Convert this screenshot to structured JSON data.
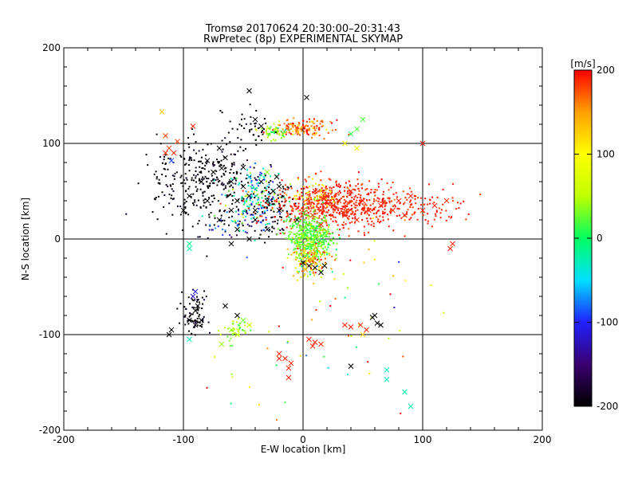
{
  "chart_data": {
    "type": "scatter",
    "title": "Tromsø 20170624 20:30:00–20:31:43",
    "subtitle": "RwPretec (8p) EXPERIMENTAL SKYMAP",
    "xlabel": "E-W location [km]",
    "ylabel": "N-S location [km]",
    "xlim": [
      -200,
      200
    ],
    "ylim": [
      -200,
      200
    ],
    "xticks": [
      -200,
      -100,
      0,
      100,
      200
    ],
    "yticks": [
      -200,
      -100,
      0,
      100,
      200
    ],
    "grid": true,
    "colorbar": {
      "label": "[m/s]",
      "min": -200,
      "max": 200,
      "ticks": [
        200,
        100,
        0,
        -100,
        -200
      ],
      "colormap": [
        "#000000",
        "#3a0070",
        "#2020ff",
        "#00e0ff",
        "#00ff60",
        "#c0ff00",
        "#ffff00",
        "#ffa000",
        "#ff0000"
      ]
    },
    "series": [
      {
        "marker": "x",
        "points": [
          [
            -45,
            155
          ],
          [
            3,
            148
          ],
          [
            -118,
            133
          ],
          [
            -40,
            125
          ],
          [
            -35,
            118
          ],
          [
            -5,
            112
          ],
          [
            -115,
            108
          ],
          [
            -112,
            95
          ],
          [
            -108,
            90
          ],
          [
            -115,
            90
          ],
          [
            -110,
            82
          ],
          [
            -105,
            102
          ],
          [
            -92,
            118
          ],
          [
            -70,
            95
          ],
          [
            -80,
            82
          ],
          [
            -75,
            70
          ],
          [
            -68,
            74
          ],
          [
            -85,
            60
          ],
          [
            -60,
            60
          ],
          [
            -50,
            55
          ],
          [
            -45,
            45
          ],
          [
            -55,
            40
          ],
          [
            -60,
            30
          ],
          [
            -40,
            30
          ],
          [
            -30,
            40
          ],
          [
            -25,
            50
          ],
          [
            -20,
            55
          ],
          [
            -35,
            60
          ],
          [
            -50,
            75
          ],
          [
            -65,
            85
          ],
          [
            -80,
            40
          ],
          [
            -95,
            45
          ],
          [
            -100,
            30
          ],
          [
            -70,
            20
          ],
          [
            -55,
            10
          ],
          [
            -40,
            20
          ],
          [
            -20,
            30
          ],
          [
            -30,
            70
          ],
          [
            -45,
            65
          ],
          [
            -22,
            65
          ],
          [
            10,
            50
          ],
          [
            20,
            45
          ],
          [
            25,
            35
          ],
          [
            15,
            30
          ],
          [
            30,
            40
          ],
          [
            40,
            50
          ],
          [
            50,
            40
          ],
          [
            35,
            25
          ],
          [
            45,
            20
          ],
          [
            55,
            30
          ],
          [
            65,
            35
          ],
          [
            75,
            30
          ],
          [
            85,
            25
          ],
          [
            80,
            40
          ],
          [
            90,
            45
          ],
          [
            100,
            30
          ],
          [
            110,
            35
          ],
          [
            120,
            40
          ],
          [
            125,
            -5
          ],
          [
            123,
            -10
          ],
          [
            100,
            100
          ],
          [
            40,
            110
          ],
          [
            45,
            115
          ],
          [
            50,
            125
          ],
          [
            35,
            100
          ],
          [
            45,
            95
          ],
          [
            5,
            40
          ],
          [
            0,
            30
          ],
          [
            8,
            25
          ],
          [
            15,
            15
          ],
          [
            -5,
            20
          ],
          [
            -30,
            10
          ],
          [
            -45,
            0
          ],
          [
            -60,
            -5
          ],
          [
            -95,
            -10
          ],
          [
            -95,
            -5
          ],
          [
            -90,
            -55
          ],
          [
            -92,
            -60
          ],
          [
            -88,
            -70
          ],
          [
            -90,
            -90
          ],
          [
            -85,
            -85
          ],
          [
            -90,
            -75
          ],
          [
            -95,
            -85
          ],
          [
            -110,
            -95
          ],
          [
            -112,
            -100
          ],
          [
            -65,
            -70
          ],
          [
            -55,
            -80
          ],
          [
            -50,
            -85
          ],
          [
            -60,
            -95
          ],
          [
            -55,
            -100
          ],
          [
            -45,
            -90
          ],
          [
            -68,
            -110
          ],
          [
            -95,
            -105
          ],
          [
            -20,
            -120
          ],
          [
            -15,
            -125
          ],
          [
            -10,
            -130
          ],
          [
            -12,
            -135
          ],
          [
            -20,
            -125
          ],
          [
            -12,
            -145
          ],
          [
            5,
            -105
          ],
          [
            10,
            -108
          ],
          [
            15,
            -110
          ],
          [
            8,
            -112
          ],
          [
            40,
            -133
          ],
          [
            35,
            -90
          ],
          [
            40,
            -92
          ],
          [
            48,
            -90
          ],
          [
            53,
            -95
          ],
          [
            58,
            -82
          ],
          [
            62,
            -88
          ],
          [
            60,
            -80
          ],
          [
            65,
            -90
          ],
          [
            50,
            -100
          ],
          [
            70,
            -137
          ],
          [
            70,
            -147
          ],
          [
            85,
            -160
          ],
          [
            90,
            -175
          ],
          [
            0,
            -25
          ],
          [
            5,
            -28
          ],
          [
            10,
            -30
          ],
          [
            15,
            -35
          ],
          [
            8,
            -22
          ],
          [
            18,
            -28
          ],
          [
            2,
            -32
          ]
        ],
        "values": [
          -200,
          -200,
          130,
          -200,
          -200,
          150,
          180,
          180,
          190,
          190,
          -90,
          180,
          190,
          -200,
          -200,
          -200,
          -200,
          -200,
          -200,
          -200,
          -200,
          -200,
          -200,
          -200,
          -200,
          -200,
          -200,
          -200,
          -200,
          -200,
          -200,
          -200,
          -200,
          -200,
          -200,
          -200,
          -200,
          40,
          -60,
          -200,
          190,
          190,
          190,
          190,
          190,
          190,
          190,
          190,
          190,
          190,
          190,
          190,
          190,
          190,
          190,
          190,
          190,
          190,
          190,
          190,
          190,
          10,
          20,
          20,
          90,
          80,
          180,
          170,
          180,
          190,
          -200,
          -200,
          -200,
          -200,
          -20,
          -10,
          -110,
          -120,
          -200,
          -200,
          -200,
          -200,
          -200,
          -200,
          -200,
          -200,
          -200,
          30,
          40,
          50,
          60,
          40,
          -30,
          190,
          190,
          190,
          190,
          190,
          190,
          190,
          190,
          190,
          190,
          -200,
          190,
          190,
          190,
          190,
          -200,
          -200,
          -200,
          -200,
          120,
          -30,
          -30,
          -20,
          -20,
          -200,
          -200,
          -200,
          -200,
          150,
          -200,
          150
        ]
      },
      {
        "marker": "dot",
        "clusters": [
          {
            "cx": -80,
            "cy": 60,
            "sx": 20,
            "sy": 22,
            "n": 280,
            "v": -200,
            "spread": 25
          },
          {
            "cx": -40,
            "cy": 45,
            "sx": 12,
            "sy": 16,
            "n": 180,
            "v": -40,
            "spread": 120
          },
          {
            "cx": -25,
            "cy": 35,
            "sx": 8,
            "sy": 18,
            "n": 80,
            "v": -200,
            "spread": 30
          },
          {
            "cx": 25,
            "cy": 35,
            "sx": 25,
            "sy": 12,
            "n": 560,
            "v": 190,
            "spread": 20
          },
          {
            "cx": 85,
            "cy": 35,
            "sx": 30,
            "sy": 13,
            "n": 140,
            "v": 190,
            "spread": 15
          },
          {
            "cx": 10,
            "cy": 45,
            "sx": 10,
            "sy": 8,
            "n": 60,
            "v": 110,
            "spread": 70
          },
          {
            "cx": 6,
            "cy": 2,
            "sx": 9,
            "sy": 11,
            "n": 480,
            "v": 25,
            "spread": 30
          },
          {
            "cx": 6,
            "cy": -22,
            "sx": 8,
            "sy": 9,
            "n": 170,
            "v": 110,
            "spread": 120
          },
          {
            "cx": 0,
            "cy": 116,
            "sx": 12,
            "sy": 4,
            "n": 140,
            "v": 170,
            "spread": 60
          },
          {
            "cx": -25,
            "cy": 112,
            "sx": 6,
            "sy": 4,
            "n": 60,
            "v": 30,
            "spread": 60
          },
          {
            "cx": -90,
            "cy": -78,
            "sx": 5,
            "sy": 14,
            "n": 80,
            "v": -200,
            "spread": 40
          },
          {
            "cx": -58,
            "cy": -95,
            "sx": 7,
            "sy": 6,
            "n": 40,
            "v": 40,
            "spread": 40
          },
          {
            "cx": -45,
            "cy": 118,
            "sx": 10,
            "sy": 12,
            "n": 40,
            "v": -200,
            "spread": 20
          },
          {
            "cx": -60,
            "cy": 15,
            "sx": 10,
            "sy": 8,
            "n": 50,
            "v": -120,
            "spread": 160
          },
          {
            "cx": 45,
            "cy": -50,
            "sx": 30,
            "sy": 40,
            "n": 40,
            "v": 100,
            "spread": 200
          },
          {
            "cx": -110,
            "cy": 60,
            "sx": 12,
            "sy": 25,
            "n": 40,
            "v": -200,
            "spread": 20
          },
          {
            "cx": -10,
            "cy": -140,
            "sx": 40,
            "sy": 30,
            "n": 20,
            "v": 60,
            "spread": 200
          }
        ]
      }
    ]
  }
}
